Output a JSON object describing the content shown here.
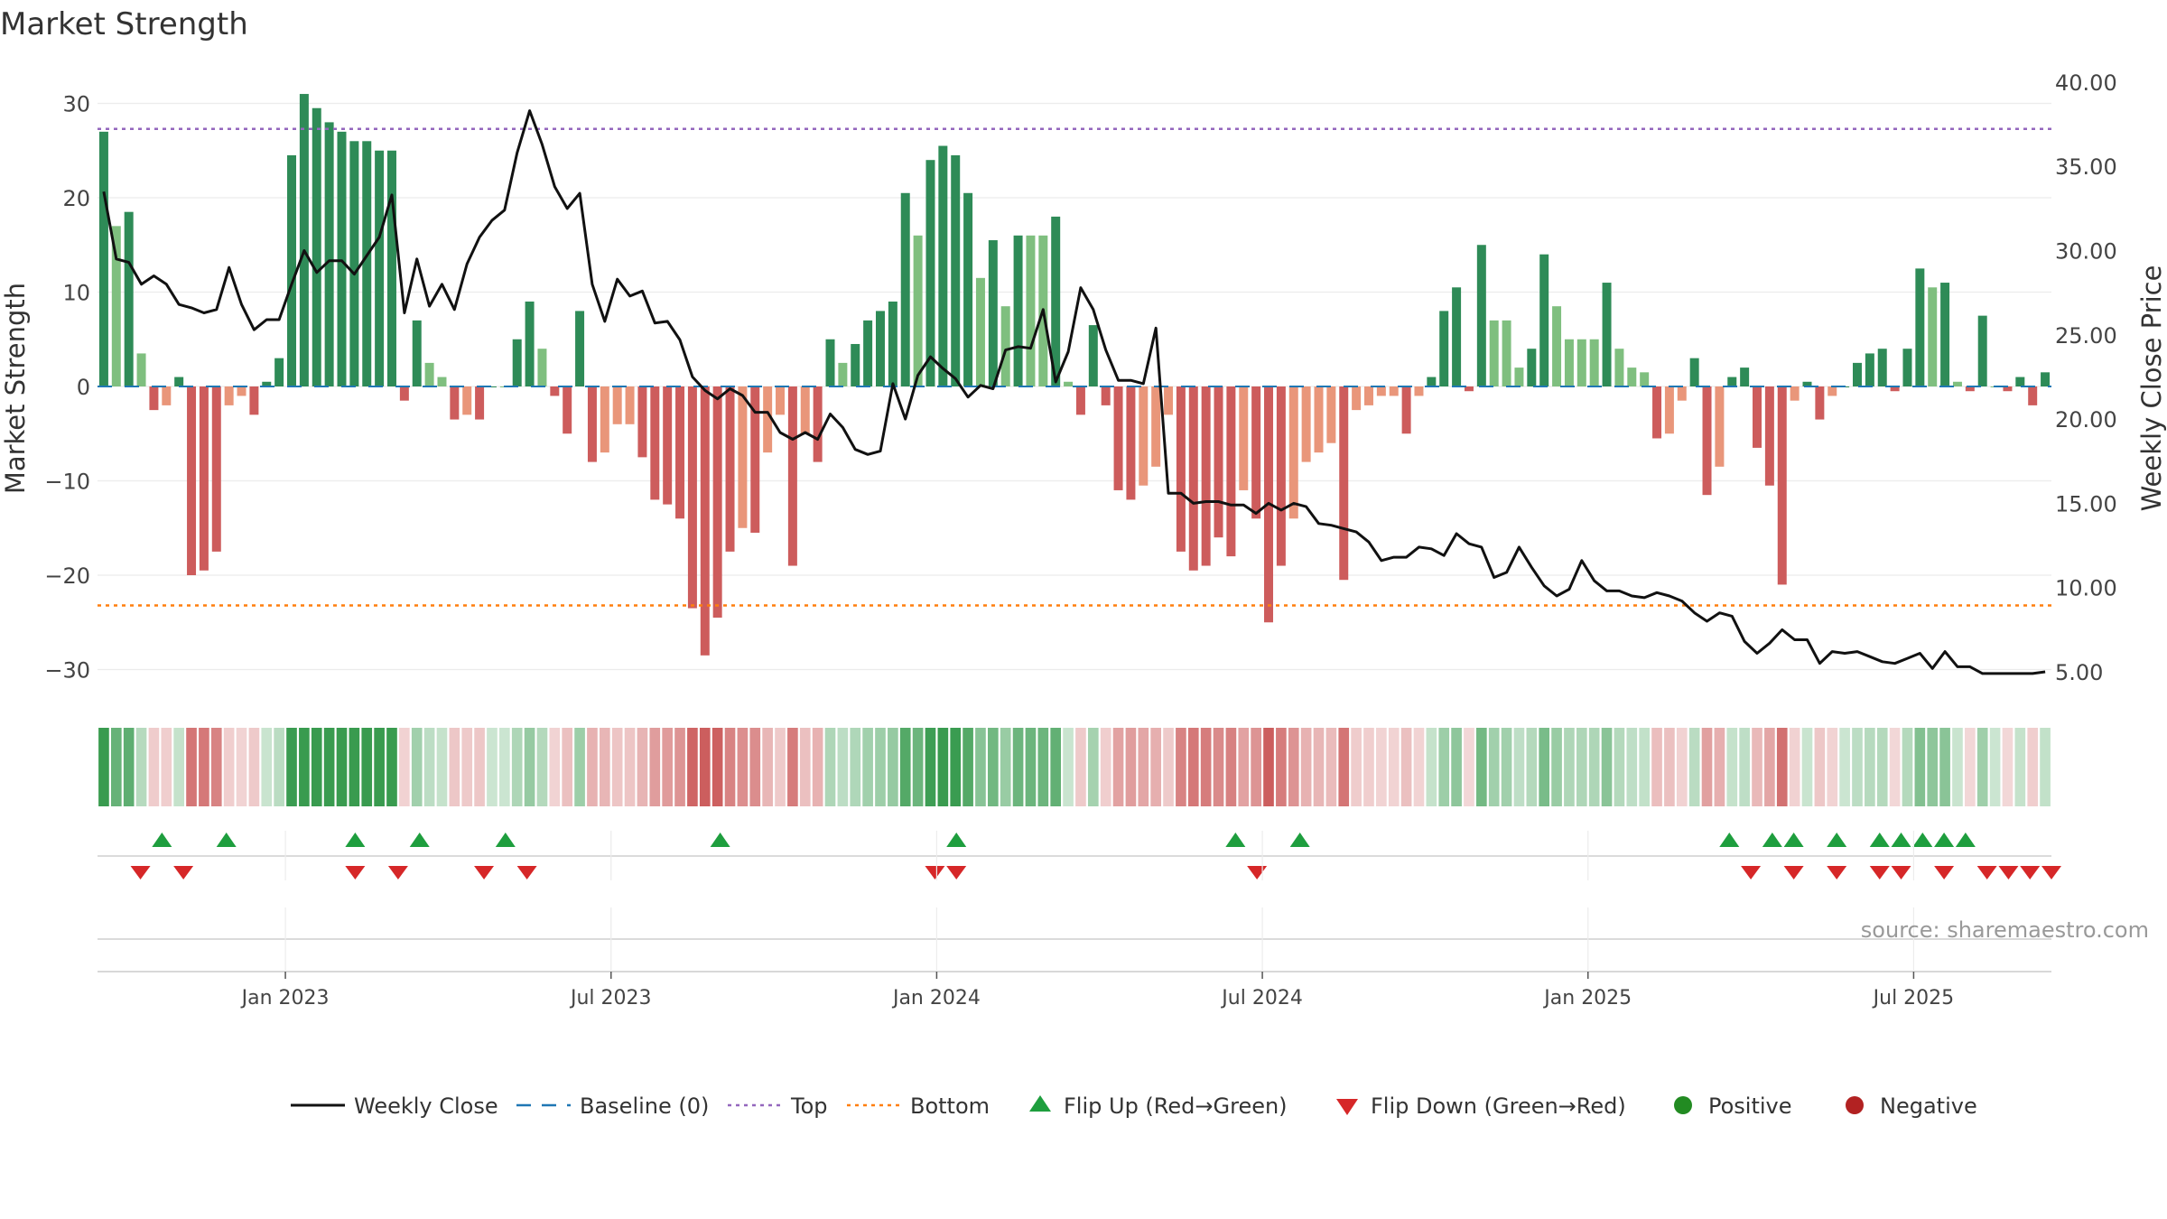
{
  "title": "Market Strength",
  "source": "source: sharemaestro.com",
  "chart_data": {
    "type": "bar",
    "title": "Market Strength",
    "ylabel_left": "Market Strength",
    "ylabel_right": "Weekly Close Price",
    "ylim_left": [
      -33,
      33
    ],
    "ylim_right": [
      4,
      40
    ],
    "yticks_left": [
      "30",
      "20",
      "10",
      "0",
      "−10",
      "−20",
      "−30"
    ],
    "yticks_left_values": [
      30,
      20,
      10,
      0,
      -10,
      -20,
      -30
    ],
    "yticks_right": [
      "40.00",
      "35.00",
      "30.00",
      "25.00",
      "20.00",
      "15.00",
      "10.00",
      "5.00"
    ],
    "yticks_right_values": [
      40,
      35,
      30,
      25,
      20,
      15,
      10,
      5
    ],
    "x_start_date": "2022-09-26",
    "x_interval": "weekly",
    "xticks": [
      "Jan 2023",
      "Jul 2023",
      "Jan 2024",
      "Jul 2024",
      "Jan 2025",
      "Jul 2025"
    ],
    "xticks_week_index": [
      15,
      41,
      67,
      93,
      119,
      145
    ],
    "top_line": 27.3,
    "bottom_line": -23.2,
    "strength": [
      27,
      17,
      18.5,
      3.5,
      -2.5,
      -2,
      1,
      -20,
      -19.5,
      -17.5,
      -2,
      -1,
      -3,
      0.5,
      3,
      24.5,
      31,
      29.5,
      28,
      27,
      26,
      26,
      25,
      25,
      -1.5,
      7,
      2.5,
      1,
      -3.5,
      -3,
      -3.5,
      0,
      0,
      5,
      9,
      4,
      -1,
      -5,
      8,
      -8,
      -7,
      -4,
      -4,
      -7.5,
      -12,
      -12.5,
      -14,
      -23.5,
      -28.5,
      -24.5,
      -17.5,
      -15,
      -15.5,
      -7,
      -3,
      -19,
      -5,
      -8,
      5,
      2.5,
      4.5,
      7,
      8,
      9,
      20.5,
      16,
      24,
      25.5,
      24.5,
      20.5,
      11.5,
      15.5,
      8.5,
      16,
      16,
      16,
      18,
      0.5,
      -3,
      6.5,
      -2,
      -11,
      -12,
      -10.5,
      -8.5,
      -3,
      -17.5,
      -19.5,
      -19,
      -16,
      -18,
      -11,
      -14,
      -25,
      -19,
      -14,
      -8,
      -7,
      -6,
      -20.5,
      -2.5,
      -2,
      -1,
      -1,
      -5,
      -1,
      1,
      8,
      10.5,
      -0.5,
      15,
      7,
      7,
      2,
      4,
      14,
      8.5,
      5,
      5,
      5,
      11,
      4,
      2,
      1.5,
      -5.5,
      -5,
      -1.5,
      3,
      -11.5,
      -8.5,
      1,
      2,
      -6.5,
      -10.5,
      -21,
      -1.5,
      0.5,
      -3.5,
      -1,
      0,
      2.5,
      3.5,
      4,
      -0.5,
      4,
      12.5,
      10.5,
      11,
      0.5,
      -0.5,
      7.5,
      0,
      -0.5,
      1,
      -2,
      1.5
    ],
    "close": [
      33.5,
      29.5,
      29.3,
      28,
      28.5,
      28,
      26.8,
      26.6,
      26.3,
      26.5,
      29,
      26.8,
      25.3,
      25.9,
      25.9,
      28,
      30,
      28.7,
      29.4,
      29.4,
      28.6,
      29.7,
      30.8,
      33.3,
      26.3,
      29.5,
      26.7,
      28,
      26.5,
      29.2,
      30.8,
      31.8,
      32.4,
      35.8,
      38.3,
      36.3,
      33.8,
      32.5,
      33.4,
      28,
      25.8,
      28.3,
      27.3,
      27.6,
      25.7,
      25.8,
      24.7,
      22.5,
      21.7,
      21.2,
      21.8,
      21.4,
      20.4,
      20.4,
      19.2,
      18.8,
      19.2,
      18.8,
      20.3,
      19.5,
      18.2,
      17.9,
      18.1,
      22.1,
      20,
      22.6,
      23.7,
      23,
      22.4,
      21.3,
      22,
      21.8,
      24.1,
      24.3,
      24.2,
      26.5,
      22.2,
      24,
      27.8,
      26.5,
      24.1,
      22.3,
      22.3,
      22.1,
      25.4,
      15.6,
      15.6,
      15,
      15.1,
      15.1,
      14.9,
      14.9,
      14.4,
      15,
      14.6,
      15,
      14.8,
      13.8,
      13.7,
      13.5,
      13.3,
      12.7,
      11.6,
      11.8,
      11.8,
      12.4,
      12.3,
      11.9,
      13.2,
      12.6,
      12.4,
      10.6,
      10.9,
      12.4,
      11.2,
      10.1,
      9.5,
      9.9,
      11.6,
      10.4,
      9.8,
      9.8,
      9.5,
      9.4,
      9.7,
      9.5,
      9.2,
      8.5,
      8,
      8.5,
      8.3,
      6.8,
      6.1,
      6.7,
      7.5,
      6.9,
      6.9,
      5.5,
      6.2,
      6.1,
      6.2,
      5.9,
      5.6,
      5.5,
      5.8,
      6.1,
      5.2,
      6.2,
      5.3,
      5.3,
      4.9,
      4.9,
      4.9,
      4.9,
      4.9,
      5
    ],
    "flip_up_weeks": [
      3,
      6,
      12,
      15,
      19,
      29,
      40,
      53,
      56,
      76,
      78,
      79,
      81,
      83,
      84,
      85,
      86,
      87
    ],
    "flip_down_weeks": [
      2,
      4,
      12,
      14,
      18,
      20,
      39,
      40,
      54,
      77,
      79,
      81,
      83,
      84,
      86,
      88,
      89,
      90,
      91
    ]
  },
  "colors": {
    "pos_strong": "#2e8b57",
    "pos_light": "#7fbf7f",
    "neg_strong": "#cd5c5c",
    "neg_light": "#e9967a",
    "close_line": "#111111",
    "baseline": "#1f77b4",
    "top": "#9467bd",
    "bottom": "#ff7f0e",
    "flip_up": "#1e9e3e",
    "flip_down": "#d62728",
    "positive": "#228b22",
    "negative": "#b22222"
  },
  "legend": [
    {
      "label": "Weekly Close",
      "kind": "line"
    },
    {
      "label": "Baseline (0)",
      "kind": "dash"
    },
    {
      "label": "Top",
      "kind": "dot-purple"
    },
    {
      "label": "Bottom",
      "kind": "dot-orange"
    },
    {
      "label": "Flip Up (Red→Green)",
      "kind": "tri-up"
    },
    {
      "label": "Flip Down (Green→Red)",
      "kind": "tri-down"
    },
    {
      "label": "Positive",
      "kind": "circle-green"
    },
    {
      "label": "Negative",
      "kind": "circle-red"
    }
  ]
}
